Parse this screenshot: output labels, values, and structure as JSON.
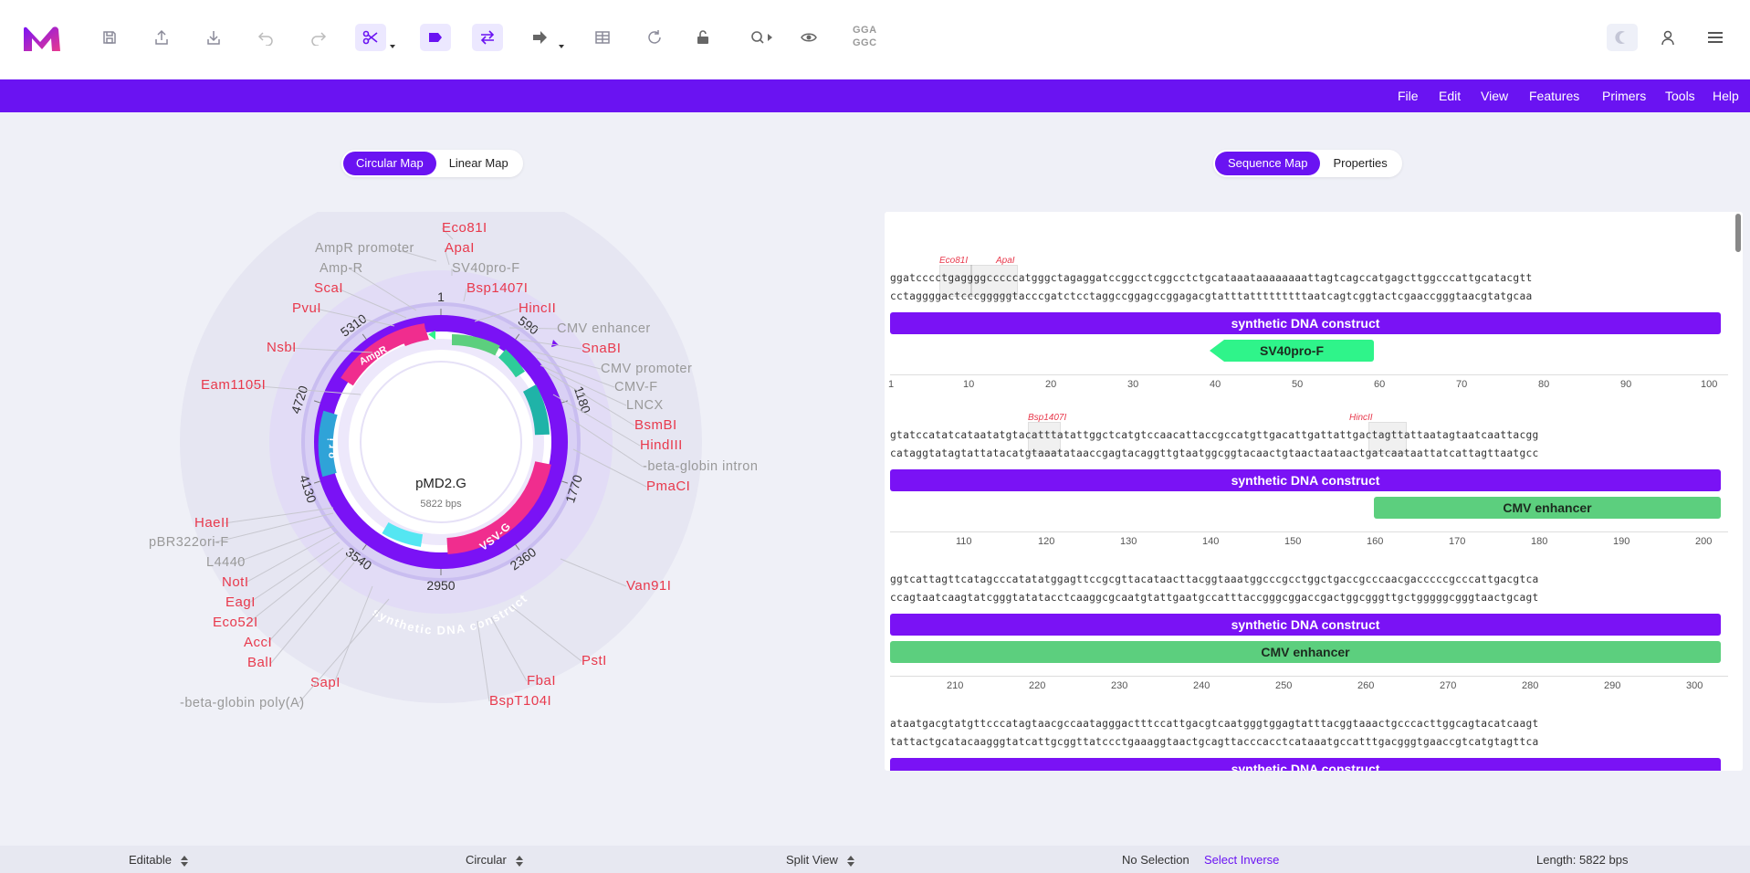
{
  "toolbar": {
    "gga_label": "GGA\nGGC"
  },
  "menubar": [
    "File",
    "Edit",
    "View",
    "Features",
    "Primers",
    "Tools",
    "Help"
  ],
  "map_toggle": {
    "circular": "Circular Map",
    "linear": "Linear Map"
  },
  "seq_toggle": {
    "sequence": "Sequence Map",
    "properties": "Properties"
  },
  "plasmid": {
    "name": "pMD2.G",
    "length": "5822 bps"
  },
  "circular_map": {
    "position_labels": [
      "1",
      "590",
      "1180",
      "1770",
      "2360",
      "2950",
      "3540",
      "4130",
      "4720",
      "5310"
    ],
    "feature_labels": [
      "AmpR",
      "ori",
      "VSV-G",
      "synthetic DNA construct"
    ],
    "labels": [
      {
        "text": "Eco81I",
        "type": "enzyme"
      },
      {
        "text": "ApaI",
        "type": "enzyme"
      },
      {
        "text": "AmpR promoter",
        "type": "feature"
      },
      {
        "text": "SV40pro-F",
        "type": "feature"
      },
      {
        "text": "Amp-R",
        "type": "feature"
      },
      {
        "text": "Bsp1407I",
        "type": "enzyme"
      },
      {
        "text": "ScaI",
        "type": "enzyme"
      },
      {
        "text": "HincII",
        "type": "enzyme"
      },
      {
        "text": "PvuI",
        "type": "enzyme"
      },
      {
        "text": "CMV enhancer",
        "type": "feature"
      },
      {
        "text": "SnaBI",
        "type": "enzyme"
      },
      {
        "text": "NsbI",
        "type": "enzyme"
      },
      {
        "text": "CMV promoter",
        "type": "feature"
      },
      {
        "text": "Eam1105I",
        "type": "enzyme"
      },
      {
        "text": "CMV-F",
        "type": "feature"
      },
      {
        "text": "LNCX",
        "type": "feature"
      },
      {
        "text": "BsmBI",
        "type": "enzyme"
      },
      {
        "text": "HindIII",
        "type": "enzyme"
      },
      {
        "text": "-beta-globin intron",
        "type": "feature"
      },
      {
        "text": "PmaCI",
        "type": "enzyme"
      },
      {
        "text": "HaeII",
        "type": "enzyme"
      },
      {
        "text": "pBR322ori-F",
        "type": "feature"
      },
      {
        "text": "L4440",
        "type": "feature"
      },
      {
        "text": "NotI",
        "type": "enzyme"
      },
      {
        "text": "Van91I",
        "type": "enzyme"
      },
      {
        "text": "EagI",
        "type": "enzyme"
      },
      {
        "text": "Eco52I",
        "type": "enzyme"
      },
      {
        "text": "AccI",
        "type": "enzyme"
      },
      {
        "text": "BalI",
        "type": "enzyme"
      },
      {
        "text": "PstI",
        "type": "enzyme"
      },
      {
        "text": "FbaI",
        "type": "enzyme"
      },
      {
        "text": "SapI",
        "type": "enzyme"
      },
      {
        "text": "BspT104I",
        "type": "enzyme"
      },
      {
        "text": "-beta-globin poly(A)",
        "type": "feature"
      }
    ]
  },
  "sequence": {
    "blocks": [
      {
        "enzymes": [
          "Eco81I",
          "ApaI"
        ],
        "top": "ggatcccctgaggggcccccatgggctagaggatccggcctcggcctctgcataaataaaaaaaattagtcagccatgagcttggcccattgcatacgtt",
        "bottom": "cctaggggactcccgggggtacccgatctcctaggccggagccggagacgtatttatttttttttaatcagtcggtactcgaaccgggtaacgtatgcaa",
        "features": [
          "synthetic DNA construct",
          "SV40pro-F"
        ],
        "ticks": [
          "1",
          "10",
          "20",
          "30",
          "40",
          "50",
          "60",
          "70",
          "80",
          "90",
          "100"
        ]
      },
      {
        "enzymes": [
          "Bsp1407I",
          "HincII"
        ],
        "top": "gtatccatatcataatatgtacatttatattggctcatgtccaacattaccgccatgttgacattgattattgactagttattaatagtaatcaattacgg",
        "bottom": "cataggtatagtattatacatgtaaatataaccgagtacaggttgtaatggcggtacaactgtaactaataactgatcaataattatcattagttaatgcc",
        "features": [
          "synthetic DNA construct",
          "CMV enhancer"
        ],
        "ticks": [
          "110",
          "120",
          "130",
          "140",
          "150",
          "160",
          "170",
          "180",
          "190",
          "200"
        ]
      },
      {
        "top": "ggtcattagttcatagcccatatatggagttccgcgttacataacttacggtaaatggcccgcctggctgaccgcccaacgacccccgcccattgacgtca",
        "bottom": "ccagtaatcaagtatcgggtatatacctcaaggcgcaatgtattgaatgccatttaccgggcggaccgactggcgggttgctgggggcgggtaactgcagt",
        "features": [
          "synthetic DNA construct",
          "CMV enhancer"
        ],
        "ticks": [
          "210",
          "220",
          "230",
          "240",
          "250",
          "260",
          "270",
          "280",
          "290",
          "300"
        ]
      },
      {
        "top": "ataatgacgtatgttcccatagtaacgccaatagggactttccattgacgtcaatgggtggagtatttacggtaaactgcccacttggcagtacatcaagt",
        "bottom": "tattactgcatacaagggtatcattgcggttatccctgaaaggtaactgcagttacccacctcataaatgccatttgacgggtgaaccgtcatgtagttca",
        "features": [
          "synthetic DNA construct"
        ]
      }
    ]
  },
  "status": {
    "editable": "Editable",
    "topology": "Circular",
    "view": "Split View",
    "selection": "No Selection",
    "select_inverse": "Select Inverse",
    "length": "Length: 5822 bps"
  },
  "colors": {
    "accent": "#6a13f2",
    "enzyme": "#e8394c",
    "feature_label": "#999999",
    "ampr": "#f02d8e",
    "ori": "#2fa3d8",
    "cmv": "#5ccf7e",
    "sv40": "#2ff48a"
  }
}
